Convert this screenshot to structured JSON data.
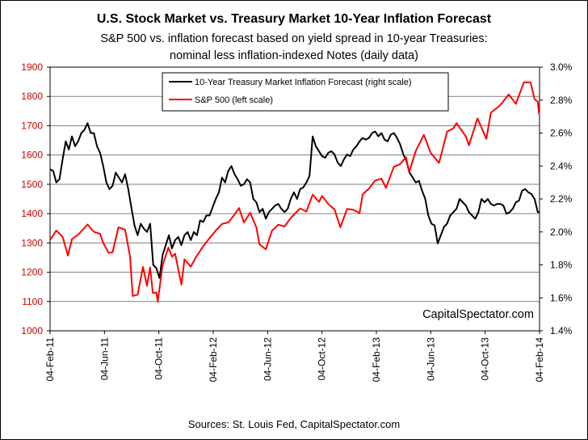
{
  "chart_data": {
    "type": "line",
    "title": "U.S. Stock Market vs. Treasury Market 10-Year Inflation Forecast",
    "subtitle_lines": [
      "S&P 500 vs. inflation forecast based on yield spread in 10-year Treasuries:",
      "nominal less inflation-indexed Notes (daily data)"
    ],
    "source": "Sources: St. Louis Fed, CapitalSpectator.com",
    "watermark": "CapitalSpectator.com",
    "x_range": [
      "2011-02-04",
      "2014-02-04"
    ],
    "x_ticks": [
      "04-Feb-11",
      "04-Jun-11",
      "04-Oct-11",
      "04-Feb-12",
      "04-Jun-12",
      "04-Oct-12",
      "04-Feb-13",
      "04-Jun-13",
      "04-Oct-13",
      "04-Feb-14"
    ],
    "y_left": {
      "ylim": [
        1000,
        1900
      ],
      "ticks": [
        "1000",
        "1100",
        "1200",
        "1300",
        "1400",
        "1500",
        "1600",
        "1700",
        "1800",
        "1900"
      ],
      "color": "#cc0000"
    },
    "y_right": {
      "ylim": [
        1.4,
        3.0
      ],
      "ticks": [
        "1.4%",
        "1.6%",
        "1.8%",
        "2.0%",
        "2.2%",
        "2.4%",
        "2.6%",
        "2.8%",
        "3.0%"
      ]
    },
    "grid": true,
    "legend_position": "top-center",
    "series": [
      {
        "name": "10-Year Treasury Market Inflation Forecast (right scale)",
        "axis": "right",
        "color": "#000000",
        "points": [
          [
            "2011-02-04",
            2.38
          ],
          [
            "2011-02-11",
            2.37
          ],
          [
            "2011-02-18",
            2.3
          ],
          [
            "2011-02-25",
            2.32
          ],
          [
            "2011-03-04",
            2.44
          ],
          [
            "2011-03-11",
            2.55
          ],
          [
            "2011-03-18",
            2.5
          ],
          [
            "2011-03-25",
            2.58
          ],
          [
            "2011-04-01",
            2.52
          ],
          [
            "2011-04-08",
            2.55
          ],
          [
            "2011-04-15",
            2.6
          ],
          [
            "2011-04-22",
            2.62
          ],
          [
            "2011-04-29",
            2.66
          ],
          [
            "2011-05-06",
            2.6
          ],
          [
            "2011-05-13",
            2.6
          ],
          [
            "2011-05-20",
            2.52
          ],
          [
            "2011-05-27",
            2.48
          ],
          [
            "2011-06-03",
            2.4
          ],
          [
            "2011-06-10",
            2.3
          ],
          [
            "2011-06-17",
            2.26
          ],
          [
            "2011-06-24",
            2.28
          ],
          [
            "2011-07-01",
            2.36
          ],
          [
            "2011-07-08",
            2.33
          ],
          [
            "2011-07-15",
            2.3
          ],
          [
            "2011-07-22",
            2.35
          ],
          [
            "2011-07-29",
            2.26
          ],
          [
            "2011-08-05",
            2.15
          ],
          [
            "2011-08-12",
            2.04
          ],
          [
            "2011-08-19",
            1.98
          ],
          [
            "2011-08-26",
            2.05
          ],
          [
            "2011-09-02",
            2.02
          ],
          [
            "2011-09-09",
            2.0
          ],
          [
            "2011-09-16",
            2.05
          ],
          [
            "2011-09-23",
            1.8
          ],
          [
            "2011-09-30",
            1.78
          ],
          [
            "2011-10-07",
            1.72
          ],
          [
            "2011-10-14",
            1.86
          ],
          [
            "2011-10-21",
            1.92
          ],
          [
            "2011-10-28",
            1.98
          ],
          [
            "2011-11-04",
            1.9
          ],
          [
            "2011-11-11",
            1.95
          ],
          [
            "2011-11-18",
            1.97
          ],
          [
            "2011-11-25",
            1.92
          ],
          [
            "2011-12-02",
            1.98
          ],
          [
            "2011-12-09",
            2.0
          ],
          [
            "2011-12-16",
            1.95
          ],
          [
            "2011-12-23",
            2.0
          ],
          [
            "2011-12-30",
            1.98
          ],
          [
            "2012-01-06",
            2.07
          ],
          [
            "2012-01-13",
            2.06
          ],
          [
            "2012-01-20",
            2.1
          ],
          [
            "2012-01-27",
            2.1
          ],
          [
            "2012-02-03",
            2.15
          ],
          [
            "2012-02-10",
            2.2
          ],
          [
            "2012-02-17",
            2.24
          ],
          [
            "2012-02-24",
            2.33
          ],
          [
            "2012-03-02",
            2.3
          ],
          [
            "2012-03-09",
            2.37
          ],
          [
            "2012-03-16",
            2.4
          ],
          [
            "2012-03-23",
            2.35
          ],
          [
            "2012-03-30",
            2.32
          ],
          [
            "2012-04-06",
            2.28
          ],
          [
            "2012-04-13",
            2.29
          ],
          [
            "2012-04-20",
            2.32
          ],
          [
            "2012-04-27",
            2.3
          ],
          [
            "2012-05-04",
            2.2
          ],
          [
            "2012-05-11",
            2.18
          ],
          [
            "2012-05-18",
            2.12
          ],
          [
            "2012-05-25",
            2.14
          ],
          [
            "2012-06-01",
            2.08
          ],
          [
            "2012-06-08",
            2.12
          ],
          [
            "2012-06-15",
            2.14
          ],
          [
            "2012-06-22",
            2.16
          ],
          [
            "2012-06-29",
            2.17
          ],
          [
            "2012-07-06",
            2.14
          ],
          [
            "2012-07-13",
            2.12
          ],
          [
            "2012-07-20",
            2.14
          ],
          [
            "2012-07-27",
            2.2
          ],
          [
            "2012-08-03",
            2.24
          ],
          [
            "2012-08-10",
            2.2
          ],
          [
            "2012-08-17",
            2.26
          ],
          [
            "2012-08-24",
            2.27
          ],
          [
            "2012-08-31",
            2.3
          ],
          [
            "2012-09-07",
            2.34
          ],
          [
            "2012-09-14",
            2.58
          ],
          [
            "2012-09-21",
            2.52
          ],
          [
            "2012-09-28",
            2.49
          ],
          [
            "2012-10-05",
            2.46
          ],
          [
            "2012-10-12",
            2.45
          ],
          [
            "2012-10-19",
            2.48
          ],
          [
            "2012-10-26",
            2.49
          ],
          [
            "2012-11-02",
            2.47
          ],
          [
            "2012-11-09",
            2.42
          ],
          [
            "2012-11-16",
            2.4
          ],
          [
            "2012-11-23",
            2.44
          ],
          [
            "2012-11-30",
            2.47
          ],
          [
            "2012-12-07",
            2.46
          ],
          [
            "2012-12-14",
            2.5
          ],
          [
            "2012-12-21",
            2.52
          ],
          [
            "2012-12-28",
            2.55
          ],
          [
            "2013-01-04",
            2.57
          ],
          [
            "2013-01-11",
            2.56
          ],
          [
            "2013-01-18",
            2.57
          ],
          [
            "2013-01-25",
            2.6
          ],
          [
            "2013-02-01",
            2.61
          ],
          [
            "2013-02-08",
            2.58
          ],
          [
            "2013-02-15",
            2.6
          ],
          [
            "2013-02-22",
            2.56
          ],
          [
            "2013-03-01",
            2.55
          ],
          [
            "2013-03-08",
            2.59
          ],
          [
            "2013-03-15",
            2.6
          ],
          [
            "2013-03-22",
            2.57
          ],
          [
            "2013-03-29",
            2.53
          ],
          [
            "2013-04-05",
            2.47
          ],
          [
            "2013-04-12",
            2.43
          ],
          [
            "2013-04-19",
            2.36
          ],
          [
            "2013-04-26",
            2.33
          ],
          [
            "2013-05-03",
            2.3
          ],
          [
            "2013-05-10",
            2.31
          ],
          [
            "2013-05-17",
            2.25
          ],
          [
            "2013-05-24",
            2.2
          ],
          [
            "2013-05-31",
            2.1
          ],
          [
            "2013-06-07",
            2.05
          ],
          [
            "2013-06-14",
            2.04
          ],
          [
            "2013-06-21",
            1.93
          ],
          [
            "2013-06-28",
            1.98
          ],
          [
            "2013-07-05",
            2.03
          ],
          [
            "2013-07-12",
            2.05
          ],
          [
            "2013-07-19",
            2.1
          ],
          [
            "2013-07-26",
            2.12
          ],
          [
            "2013-08-02",
            2.14
          ],
          [
            "2013-08-09",
            2.2
          ],
          [
            "2013-08-16",
            2.18
          ],
          [
            "2013-08-23",
            2.16
          ],
          [
            "2013-08-30",
            2.12
          ],
          [
            "2013-09-06",
            2.1
          ],
          [
            "2013-09-13",
            2.08
          ],
          [
            "2013-09-20",
            2.12
          ],
          [
            "2013-09-27",
            2.2
          ],
          [
            "2013-10-04",
            2.18
          ],
          [
            "2013-10-11",
            2.2
          ],
          [
            "2013-10-18",
            2.17
          ],
          [
            "2013-10-25",
            2.16
          ],
          [
            "2013-11-01",
            2.17
          ],
          [
            "2013-11-08",
            2.17
          ],
          [
            "2013-11-15",
            2.16
          ],
          [
            "2013-11-22",
            2.11
          ],
          [
            "2013-11-29",
            2.12
          ],
          [
            "2013-12-06",
            2.14
          ],
          [
            "2013-12-13",
            2.18
          ],
          [
            "2013-12-20",
            2.19
          ],
          [
            "2013-12-27",
            2.25
          ],
          [
            "2014-01-03",
            2.26
          ],
          [
            "2014-01-10",
            2.24
          ],
          [
            "2014-01-17",
            2.23
          ],
          [
            "2014-01-24",
            2.2
          ],
          [
            "2014-01-31",
            2.12
          ],
          [
            "2014-02-04",
            2.12
          ]
        ]
      },
      {
        "name": "S&P 500 (left scale)",
        "axis": "left",
        "color": "#ff0000",
        "points": [
          [
            "2011-02-04",
            1310
          ],
          [
            "2011-02-18",
            1342
          ],
          [
            "2011-03-04",
            1321
          ],
          [
            "2011-03-16",
            1257
          ],
          [
            "2011-03-25",
            1313
          ],
          [
            "2011-04-08",
            1328
          ],
          [
            "2011-04-29",
            1363
          ],
          [
            "2011-05-13",
            1338
          ],
          [
            "2011-05-27",
            1331
          ],
          [
            "2011-06-03",
            1300
          ],
          [
            "2011-06-15",
            1266
          ],
          [
            "2011-06-24",
            1268
          ],
          [
            "2011-07-07",
            1353
          ],
          [
            "2011-07-22",
            1345
          ],
          [
            "2011-08-02",
            1254
          ],
          [
            "2011-08-08",
            1119
          ],
          [
            "2011-08-19",
            1123
          ],
          [
            "2011-08-31",
            1218
          ],
          [
            "2011-09-09",
            1154
          ],
          [
            "2011-09-16",
            1216
          ],
          [
            "2011-09-22",
            1129
          ],
          [
            "2011-09-30",
            1131
          ],
          [
            "2011-10-03",
            1099
          ],
          [
            "2011-10-14",
            1224
          ],
          [
            "2011-10-27",
            1284
          ],
          [
            "2011-11-04",
            1253
          ],
          [
            "2011-11-11",
            1263
          ],
          [
            "2011-11-25",
            1158
          ],
          [
            "2011-12-02",
            1244
          ],
          [
            "2011-12-16",
            1219
          ],
          [
            "2011-12-30",
            1257
          ],
          [
            "2012-01-13",
            1289
          ],
          [
            "2012-01-27",
            1316
          ],
          [
            "2012-02-10",
            1342
          ],
          [
            "2012-02-24",
            1365
          ],
          [
            "2012-03-09",
            1370
          ],
          [
            "2012-03-23",
            1397
          ],
          [
            "2012-04-02",
            1419
          ],
          [
            "2012-04-13",
            1370
          ],
          [
            "2012-04-27",
            1403
          ],
          [
            "2012-05-11",
            1353
          ],
          [
            "2012-05-18",
            1295
          ],
          [
            "2012-06-01",
            1278
          ],
          [
            "2012-06-15",
            1342
          ],
          [
            "2012-06-29",
            1362
          ],
          [
            "2012-07-13",
            1356
          ],
          [
            "2012-07-27",
            1385
          ],
          [
            "2012-08-17",
            1418
          ],
          [
            "2012-08-31",
            1407
          ],
          [
            "2012-09-14",
            1465
          ],
          [
            "2012-09-28",
            1440
          ],
          [
            "2012-10-05",
            1460
          ],
          [
            "2012-10-19",
            1433
          ],
          [
            "2012-11-02",
            1414
          ],
          [
            "2012-11-15",
            1353
          ],
          [
            "2012-11-30",
            1416
          ],
          [
            "2012-12-14",
            1413
          ],
          [
            "2012-12-28",
            1402
          ],
          [
            "2013-01-04",
            1466
          ],
          [
            "2013-01-18",
            1485
          ],
          [
            "2013-02-01",
            1513
          ],
          [
            "2013-02-15",
            1519
          ],
          [
            "2013-02-25",
            1488
          ],
          [
            "2013-03-15",
            1560
          ],
          [
            "2013-03-29",
            1569
          ],
          [
            "2013-04-11",
            1593
          ],
          [
            "2013-04-18",
            1541
          ],
          [
            "2013-05-03",
            1614
          ],
          [
            "2013-05-21",
            1669
          ],
          [
            "2013-06-05",
            1608
          ],
          [
            "2013-06-24",
            1573
          ],
          [
            "2013-07-12",
            1680
          ],
          [
            "2013-07-26",
            1691
          ],
          [
            "2013-08-02",
            1709
          ],
          [
            "2013-08-23",
            1663
          ],
          [
            "2013-08-30",
            1633
          ],
          [
            "2013-09-18",
            1725
          ],
          [
            "2013-10-08",
            1655
          ],
          [
            "2013-10-18",
            1744
          ],
          [
            "2013-11-08",
            1770
          ],
          [
            "2013-11-27",
            1807
          ],
          [
            "2013-12-13",
            1775
          ],
          [
            "2013-12-31",
            1848
          ],
          [
            "2014-01-15",
            1848
          ],
          [
            "2014-01-24",
            1790
          ],
          [
            "2014-01-31",
            1782
          ],
          [
            "2014-02-03",
            1741
          ],
          [
            "2014-02-04",
            1755
          ]
        ]
      }
    ]
  }
}
